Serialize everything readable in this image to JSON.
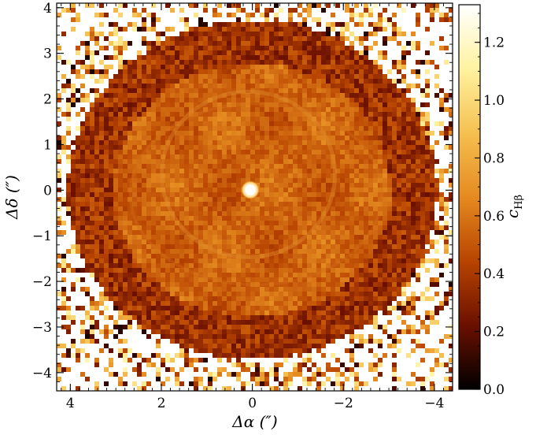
{
  "chart_data": {
    "type": "heatmap",
    "title": "",
    "xlabel": "Δα (″)",
    "ylabel": "Δδ (″)",
    "xlim": [
      4.3,
      -4.4
    ],
    "ylim": [
      -4.4,
      4.1
    ],
    "x_ticks": [
      4,
      2,
      0,
      -2,
      -4
    ],
    "x_tick_labels": [
      "4",
      "2",
      "0",
      "−2",
      "−4"
    ],
    "y_ticks": [
      4,
      3,
      2,
      1,
      0,
      -1,
      -2,
      -3,
      -4
    ],
    "y_tick_labels": [
      "4",
      "3",
      "2",
      "1",
      "0",
      "−1",
      "−2",
      "−3",
      "−4"
    ],
    "colorbar": {
      "label": "c",
      "label_subscript": "Hβ",
      "range": [
        0.0,
        1.33
      ],
      "ticks": [
        0.0,
        0.2,
        0.4,
        0.6,
        0.8,
        1.0,
        1.2
      ],
      "tick_labels": [
        "0.0",
        "0.2",
        "0.4",
        "0.6",
        "0.8",
        "1.0",
        "1.2"
      ],
      "colormap": "afmhot",
      "stops": [
        "#000000",
        "#6b1000",
        "#b84400",
        "#e58a20",
        "#f5c050",
        "#fff2a0",
        "#ffffff"
      ]
    },
    "features": {
      "central_star": {
        "x": 0.0,
        "y": 0.0,
        "value": 1.33
      },
      "nebula_shell_mean_value": 0.55,
      "outer_region_noise": "high"
    }
  }
}
